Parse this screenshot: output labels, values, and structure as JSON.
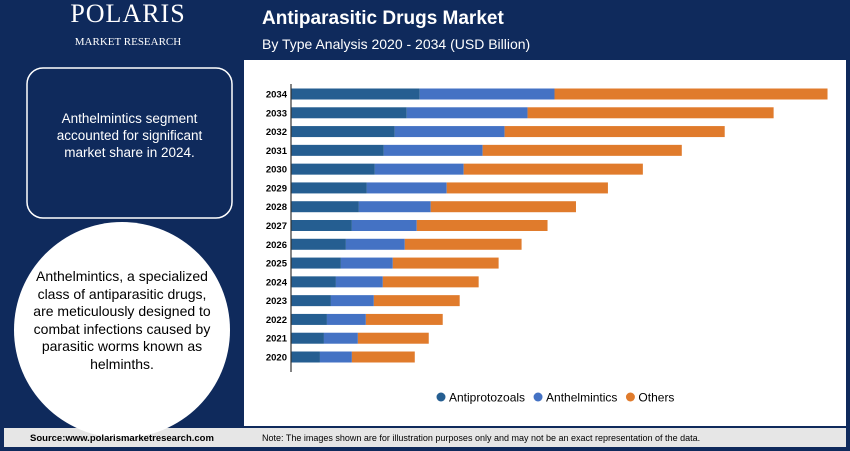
{
  "logo": {
    "name": "POLARIS",
    "tagline": "MARKET RESEARCH"
  },
  "callout": "Anthelmintics segment accounted for significant market share in 2024.",
  "description": "Anthelmintics, a specialized class of antiparasitic drugs, are meticulously designed to combat infections caused by parasitic worms known as helminths.",
  "footer": {
    "source": "Source:www.polarismarketresearch.com",
    "note": "Note: The images shown are for illustration purposes only and may not be an exact representation of the data."
  },
  "chart_data": {
    "type": "bar",
    "orientation": "horizontal",
    "stacked": true,
    "title": "Antiparasitic Drugs Market",
    "subtitle": "By Type Analysis 2020 - 2034 (USD Billion)",
    "categories": [
      "2020",
      "2021",
      "2022",
      "2023",
      "2024",
      "2025",
      "2026",
      "2027",
      "2028",
      "2029",
      "2030",
      "2031",
      "2032",
      "2033",
      "2034"
    ],
    "xlim": [
      0,
      11
    ],
    "legend": "bottom",
    "series": [
      {
        "name": "Antiprotozoals",
        "color": "#255e91",
        "values": [
          0.58,
          0.66,
          0.72,
          0.8,
          0.9,
          1.0,
          1.1,
          1.22,
          1.36,
          1.52,
          1.68,
          1.86,
          2.08,
          2.32,
          2.58
        ]
      },
      {
        "name": "Anthelmintics",
        "color": "#4472c4",
        "values": [
          0.64,
          0.68,
          0.78,
          0.86,
          0.94,
          1.04,
          1.18,
          1.3,
          1.44,
          1.6,
          1.78,
          1.98,
          2.2,
          2.42,
          2.7
        ]
      },
      {
        "name": "Others",
        "color": "#e07b2c",
        "values": [
          1.26,
          1.42,
          1.54,
          1.72,
          1.92,
          2.12,
          2.34,
          2.62,
          2.91,
          3.23,
          3.59,
          3.99,
          4.41,
          4.93,
          5.47
        ]
      }
    ]
  }
}
